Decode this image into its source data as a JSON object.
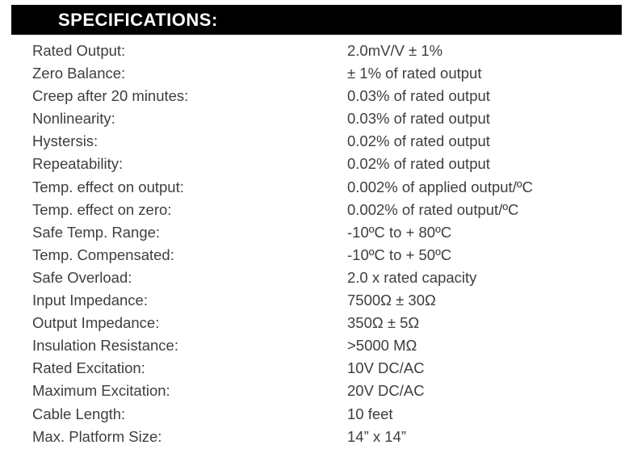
{
  "header": {
    "title": "SPECIFICATIONS:"
  },
  "specs": {
    "rows": [
      {
        "label": "Rated Output:",
        "value": "2.0mV/V ± 1%"
      },
      {
        "label": "Zero Balance:",
        "value": "± 1% of rated output"
      },
      {
        "label": "Creep after 20 minutes:",
        "value": "0.03% of rated output"
      },
      {
        "label": "Nonlinearity:",
        "value": "0.03% of rated output"
      },
      {
        "label": "Hystersis:",
        "value": "0.02% of rated output"
      },
      {
        "label": "Repeatability:",
        "value": "0.02% of rated output"
      },
      {
        "label": "Temp. effect on output:",
        "value": "0.002% of applied output/ºC"
      },
      {
        "label": "Temp. effect on zero:",
        "value": "0.002% of rated output/ºC"
      },
      {
        "label": "Safe Temp. Range:",
        "value": "-10ºC to + 80ºC"
      },
      {
        "label": "Temp. Compensated:",
        "value": "-10ºC to + 50ºC"
      },
      {
        "label": "Safe Overload:",
        "value": "2.0 x rated capacity"
      },
      {
        "label": "Input Impedance:",
        "value": "7500Ω ± 30Ω"
      },
      {
        "label": "Output Impedance:",
        "value": "350Ω ± 5Ω"
      },
      {
        "label": "Insulation Resistance:",
        "value": ">5000 MΩ"
      },
      {
        "label": "Rated Excitation:",
        "value": "10V DC/AC"
      },
      {
        "label": "Maximum Excitation:",
        "value": "20V DC/AC"
      },
      {
        "label": "Cable Length:",
        "value": "10 feet"
      },
      {
        "label": "Max. Platform Size:",
        "value": "14” x 14”"
      }
    ]
  },
  "colors": {
    "header_bg": "#000000",
    "header_text": "#ffffff",
    "body_text": "#3e3e3e",
    "page_bg": "#ffffff"
  }
}
